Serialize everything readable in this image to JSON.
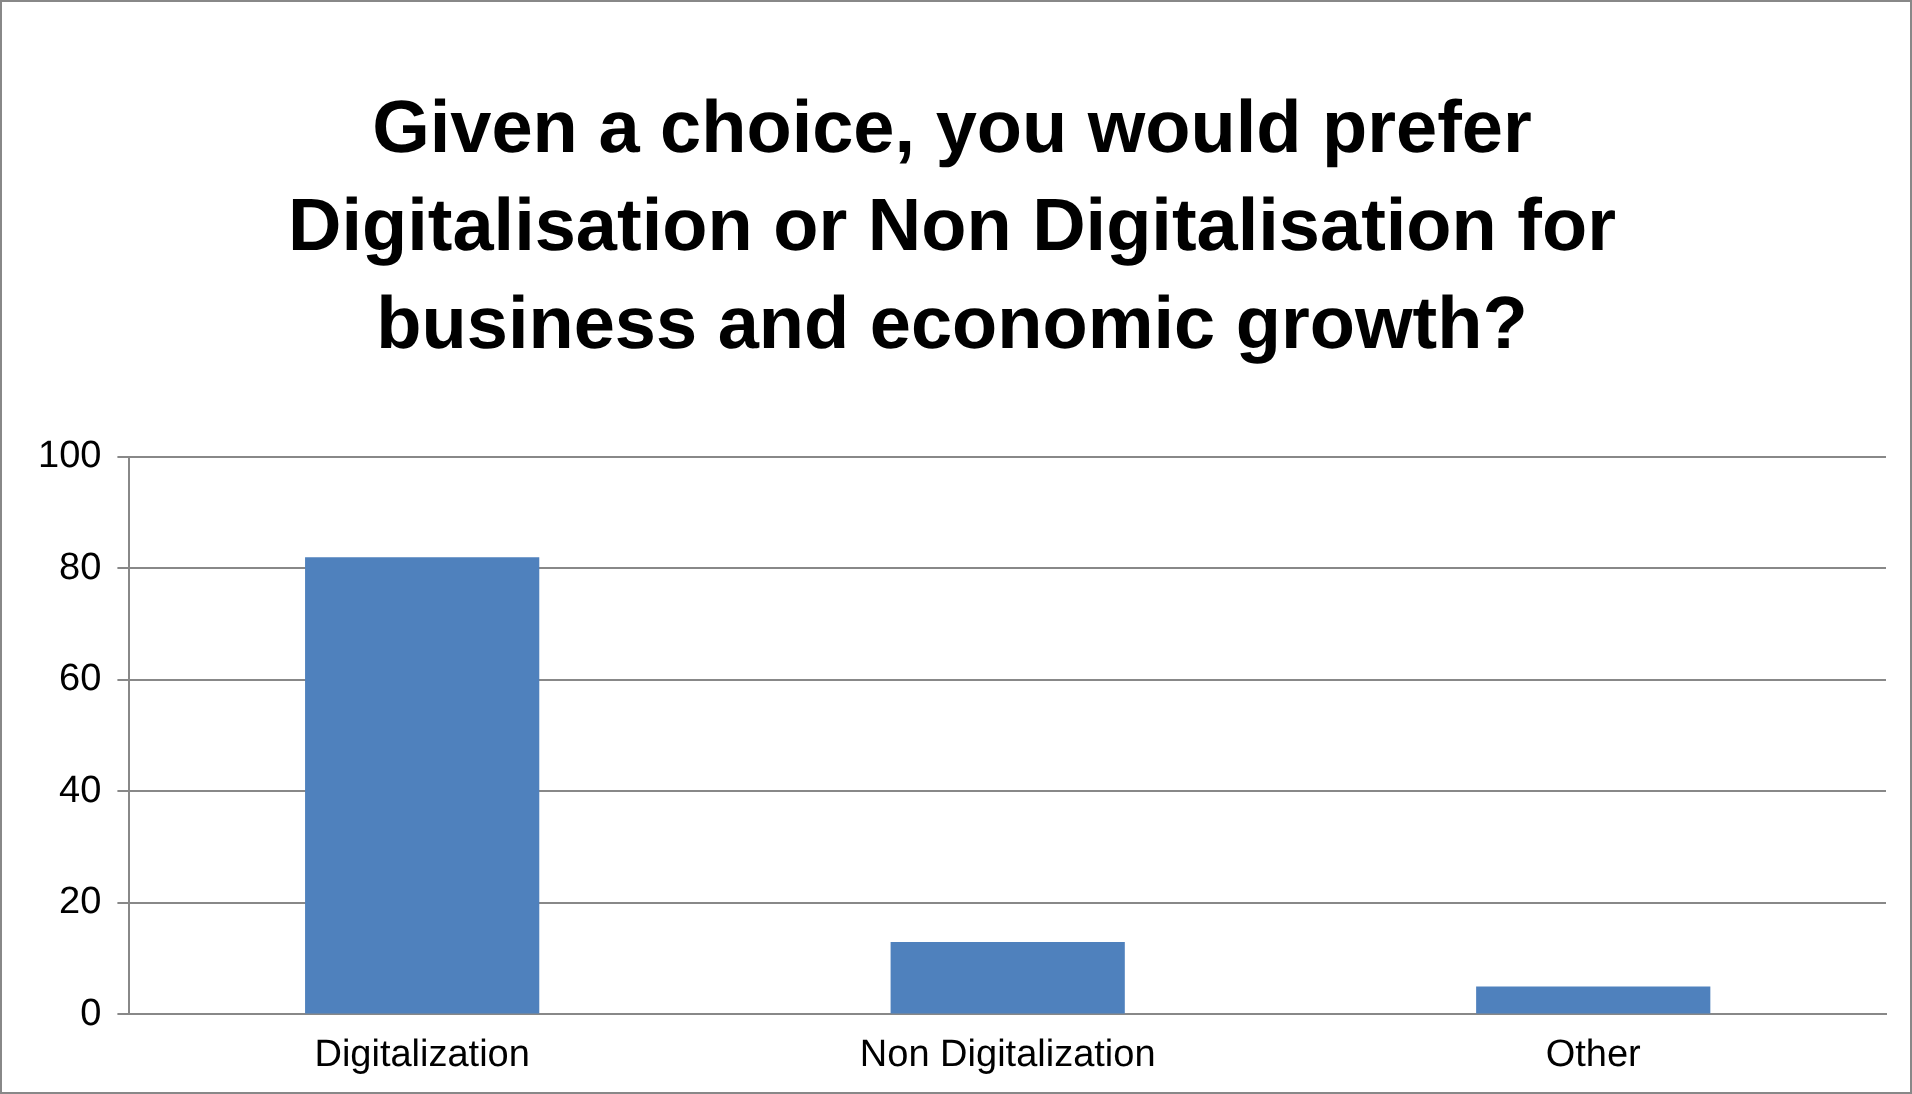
{
  "chart_data": {
    "type": "bar",
    "title": "Given a choice, you would prefer Digitalisation or Non Digitalisation for business and economic growth?",
    "categories": [
      "Digitalization",
      "Non Digitalization",
      "Other"
    ],
    "values": [
      82,
      13,
      5
    ],
    "color": "#4f81bd",
    "ylim": [
      0,
      100
    ],
    "yticks": [
      0,
      20,
      40,
      60,
      80,
      100
    ],
    "grid": "y",
    "legend": false
  }
}
